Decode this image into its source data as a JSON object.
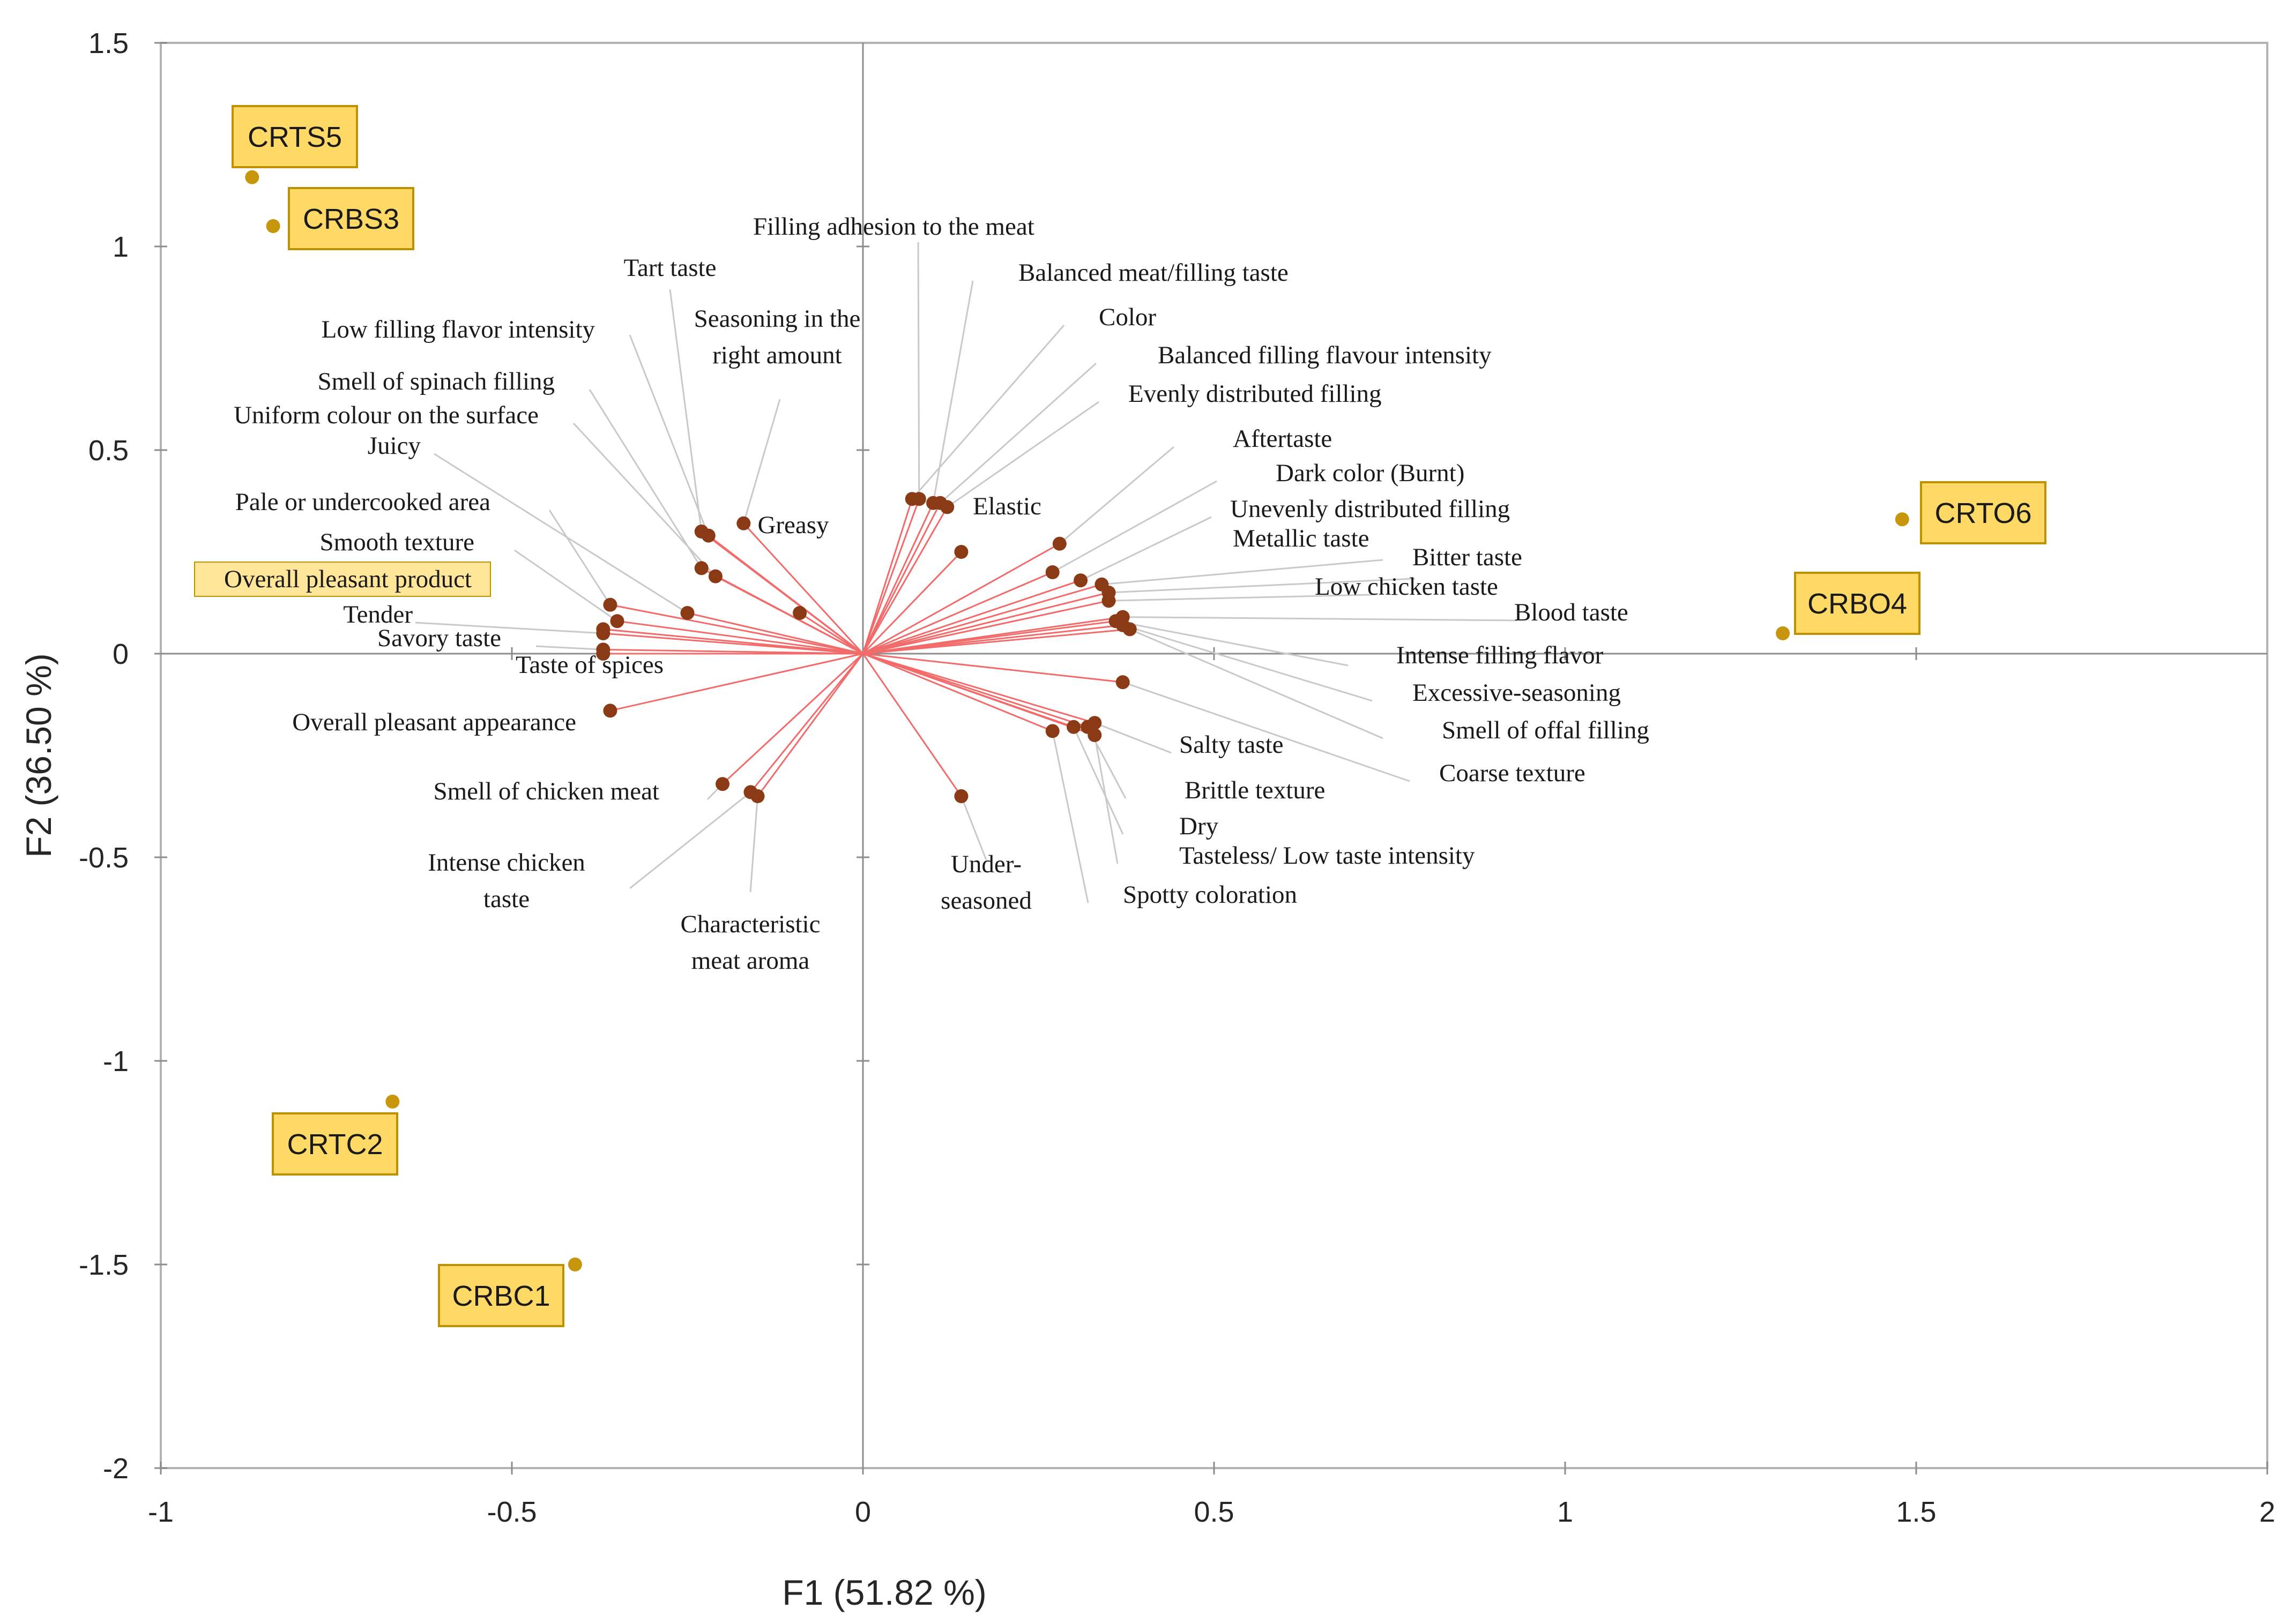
{
  "chart_data": {
    "type": "scatter",
    "subtype": "pca-biplot",
    "title": "",
    "xlabel": "F1 (51.82 %)",
    "ylabel": "F2 (36.50 %)",
    "xlim": [
      -1,
      2
    ],
    "ylim": [
      -2,
      1.5
    ],
    "x_ticks": [
      "-1",
      "-0.5",
      "0",
      "0.5",
      "1",
      "1.5",
      "2"
    ],
    "y_ticks": [
      "1.5",
      "1",
      "0.5",
      "0",
      "-0.5",
      "-1",
      "-1.5",
      "-2"
    ],
    "grid": false,
    "colors": {
      "vector": "#f26b6b",
      "variable_point": "#8b3a16",
      "observation_point": "#c8960c",
      "observation_box_fill": "#ffd966",
      "observation_box_border": "#bf9000",
      "leader_line": "#c9c9c9",
      "axes": "#8c8c8c",
      "frame": "#b3b3b3"
    },
    "observations": [
      {
        "label": "CRTS5",
        "x": -0.87,
        "y": 1.17
      },
      {
        "label": "CRBS3",
        "x": -0.84,
        "y": 1.05
      },
      {
        "label": "CRTO6",
        "x": 1.48,
        "y": 0.33
      },
      {
        "label": "CRBO4",
        "x": 1.31,
        "y": 0.05
      },
      {
        "label": "CRTC2",
        "x": -0.67,
        "y": -1.1
      },
      {
        "label": "CRBC1",
        "x": -0.41,
        "y": -1.5
      }
    ],
    "variables": [
      {
        "label": "Filling adhesion to the meat",
        "x": 0.08,
        "y": 0.38
      },
      {
        "label": "Balanced meat/filling taste",
        "x": 0.1,
        "y": 0.37
      },
      {
        "label": "Color",
        "x": 0.07,
        "y": 0.38
      },
      {
        "label": "Balanced filling flavour intensity",
        "x": 0.11,
        "y": 0.37
      },
      {
        "label": "Evenly distributed filling",
        "x": 0.12,
        "y": 0.36
      },
      {
        "label": "Elastic",
        "x": 0.14,
        "y": 0.25
      },
      {
        "label": "Aftertaste",
        "x": 0.28,
        "y": 0.27
      },
      {
        "label": "Dark color (Burnt)",
        "x": 0.27,
        "y": 0.2
      },
      {
        "label": "Unevenly distributed filling",
        "x": 0.31,
        "y": 0.18
      },
      {
        "label": "Metallic taste",
        "x": 0.34,
        "y": 0.17
      },
      {
        "label": "Bitter taste",
        "x": 0.35,
        "y": 0.15
      },
      {
        "label": "Low chicken taste",
        "x": 0.35,
        "y": 0.13
      },
      {
        "label": "Blood taste",
        "x": 0.37,
        "y": 0.09
      },
      {
        "label": "Intense filling flavor",
        "x": 0.36,
        "y": 0.08
      },
      {
        "label": "Excessive-seasoning",
        "x": 0.37,
        "y": 0.07
      },
      {
        "label": "Smell of offal filling",
        "x": 0.38,
        "y": 0.06
      },
      {
        "label": "Coarse texture",
        "x": 0.37,
        "y": -0.07
      },
      {
        "label": "Salty taste",
        "x": 0.33,
        "y": -0.17
      },
      {
        "label": "Brittle texture",
        "x": 0.32,
        "y": -0.18
      },
      {
        "label": "Dry",
        "x": 0.3,
        "y": -0.18
      },
      {
        "label": "Tasteless/ Low taste intensity",
        "x": 0.33,
        "y": -0.2
      },
      {
        "label": "Spotty coloration",
        "x": 0.27,
        "y": -0.19
      },
      {
        "label": "Under-\nseasoned",
        "x": 0.14,
        "y": -0.35
      },
      {
        "label": "Greasy",
        "x": -0.09,
        "y": 0.1
      },
      {
        "label": "Seasoning in the\nright amount",
        "x": -0.17,
        "y": 0.32
      },
      {
        "label": "Tart taste",
        "x": -0.23,
        "y": 0.3
      },
      {
        "label": "Low filling flavor intensity",
        "x": -0.22,
        "y": 0.29
      },
      {
        "label": "Smell of spinach filling",
        "x": -0.23,
        "y": 0.21
      },
      {
        "label": "Uniform colour on the surface",
        "x": -0.21,
        "y": 0.19
      },
      {
        "label": "Juicy",
        "x": -0.25,
        "y": 0.1
      },
      {
        "label": "Pale or undercooked area",
        "x": -0.36,
        "y": 0.12
      },
      {
        "label": "Smooth texture",
        "x": -0.35,
        "y": 0.08
      },
      {
        "label": "Overall pleasant product",
        "x": -0.37,
        "y": 0.06
      },
      {
        "label": "Tender",
        "x": -0.37,
        "y": 0.05
      },
      {
        "label": "Savory taste",
        "x": -0.37,
        "y": 0.01
      },
      {
        "label": "Taste of spices",
        "x": -0.37,
        "y": 0.0
      },
      {
        "label": "Overall pleasant appearance",
        "x": -0.36,
        "y": -0.14
      },
      {
        "label": "Smell of chicken meat",
        "x": -0.2,
        "y": -0.32
      },
      {
        "label": "Intense chicken\ntaste",
        "x": -0.16,
        "y": -0.34
      },
      {
        "label": "Characteristic\nmeat aroma",
        "x": -0.15,
        "y": -0.35
      }
    ]
  }
}
